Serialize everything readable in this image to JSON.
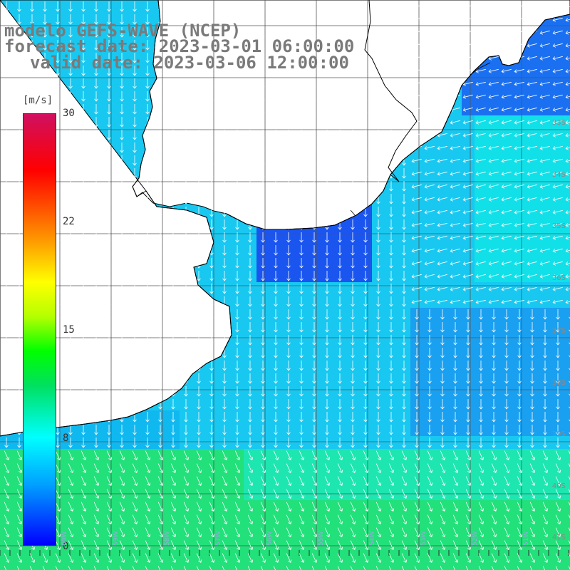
{
  "titles": {
    "line1": "modelo GEFS-WAVE (NCEP)",
    "line2": "forecast date: 2023-03-01 06:00:00",
    "line3": "valid date: 2023-03-06 12:00:00"
  },
  "colorbar": {
    "unit": "[m/s]",
    "ticks": [
      "30",
      "22",
      "15",
      "8",
      "0"
    ],
    "colors": [
      "#0000ff",
      "#00a0ff",
      "#00ffff",
      "#00e060",
      "#00ff00",
      "#b4ff00",
      "#ffff00",
      "#ffa000",
      "#ff4000",
      "#ff0000",
      "#d01060"
    ]
  },
  "lat_labels": [
    "33S",
    "34S",
    "35S",
    "36S",
    "37S",
    "38S",
    "39S",
    "40S",
    "41S"
  ],
  "lon_labels": [
    "60W",
    "59W",
    "58W",
    "57W",
    "56W",
    "55W",
    "54W",
    "53W",
    "52W",
    "51W"
  ],
  "colors": {
    "land": "#ffffff",
    "coast": "#000000",
    "grid": "#555555",
    "arrow": "#ffffff",
    "label": "#7a7a7a"
  }
}
